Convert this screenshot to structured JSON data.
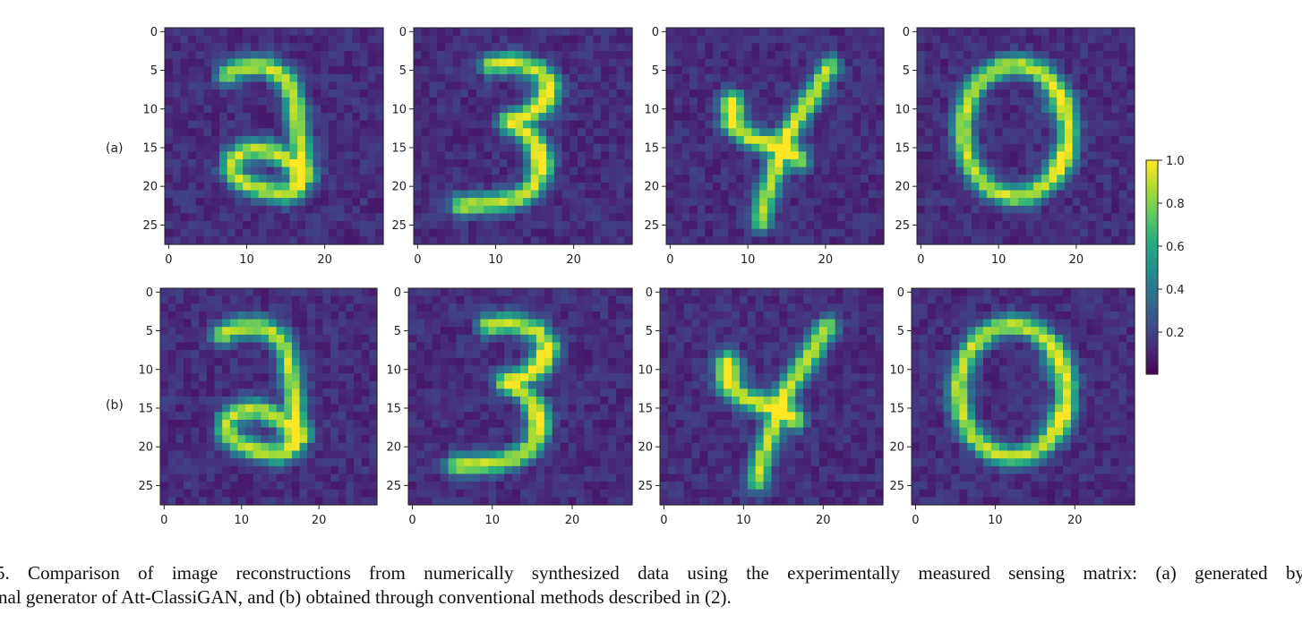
{
  "figure": {
    "rows": [
      {
        "label": "(a)",
        "digits": [
          "2",
          "3",
          "4",
          "0"
        ]
      },
      {
        "label": "(b)",
        "digits": [
          "2",
          "3",
          "4",
          "0"
        ]
      }
    ],
    "image_size": 28,
    "x_ticks": [
      0,
      10,
      20
    ],
    "y_ticks": [
      0,
      5,
      10,
      15,
      20,
      25
    ],
    "colormap": "viridis",
    "colors": [
      "#440154",
      "#3b528b",
      "#21918c",
      "#5ec962",
      "#fde725"
    ],
    "colorbar": {
      "min": 0,
      "max": 1.0,
      "ticks": [
        "1.0",
        "0.8",
        "0.6",
        "0.4",
        "0.2"
      ],
      "tick_values": [
        1.0,
        0.8,
        0.6,
        0.4,
        0.2
      ]
    }
  },
  "caption": {
    "line1": "5.  Comparison of image reconstructions from numerically synthesized data using the experimentally measured sensing matrix: (a) generated by",
    "line2": "nal generator of Att-ClassiGAN, and (b) obtained through conventional methods described in (2)."
  }
}
